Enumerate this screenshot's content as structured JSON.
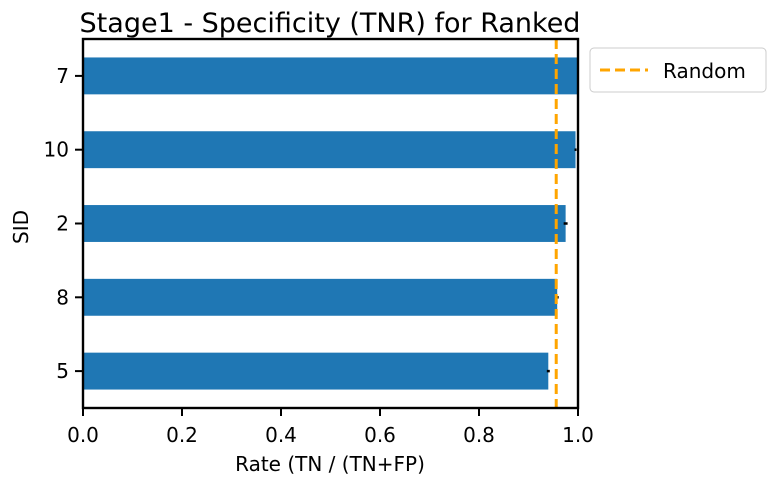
{
  "chart_data": {
    "type": "bar",
    "orientation": "horizontal",
    "title": "Stage1 - Specificity (TNR) for Ranked",
    "xlabel": "Rate (TN / (TN+FP)",
    "ylabel": "SID",
    "xlim": [
      0,
      1
    ],
    "xticks": [
      "0.0",
      "0.2",
      "0.4",
      "0.6",
      "0.8",
      "1.0"
    ],
    "categories": [
      "7",
      "10",
      "2",
      "8",
      "5"
    ],
    "values": [
      1.0,
      0.995,
      0.975,
      0.958,
      0.94
    ],
    "errors": [
      0.0,
      0.002,
      0.004,
      0.003,
      0.003
    ],
    "bar_color": "#1f77b4",
    "reference_line": {
      "label": "Random",
      "value": 0.956,
      "color": "#ffa500",
      "style": "dashed"
    },
    "legend": {
      "position": "outside-top-right",
      "entries": [
        "Random"
      ]
    },
    "grid": false
  }
}
